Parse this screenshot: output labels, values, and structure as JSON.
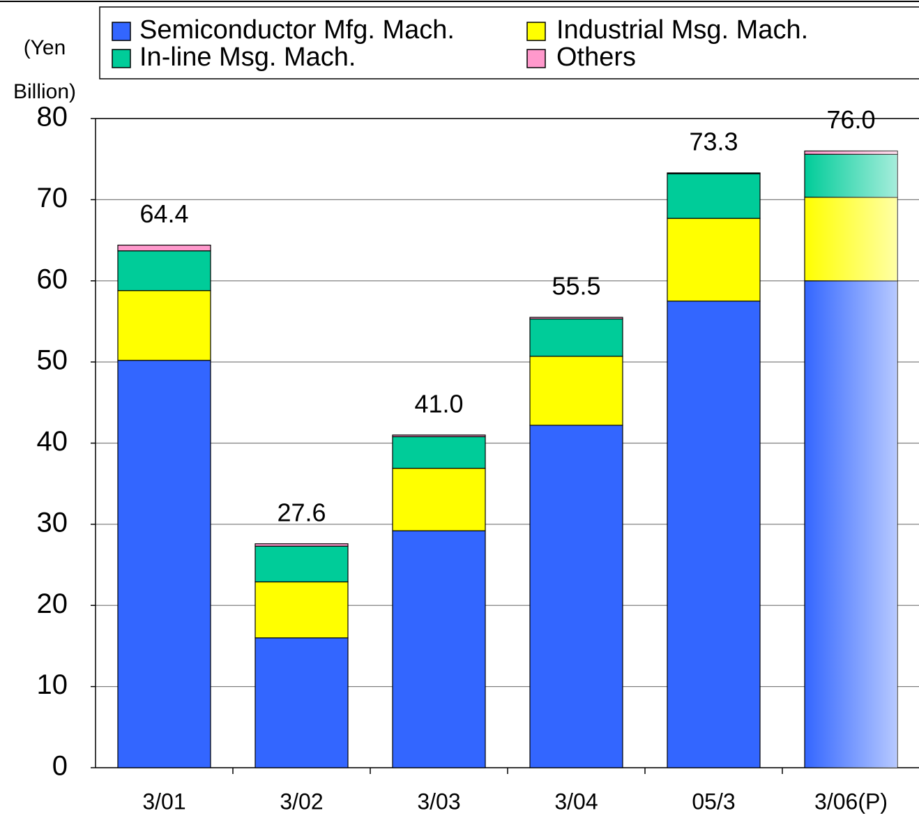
{
  "chart_data": {
    "type": "stacked_bar",
    "y_label_lines": [
      "(Yen",
      "Billion)"
    ],
    "categories": [
      "3/01",
      "3/02",
      "3/03",
      "3/04",
      "05/3",
      "3/06(P)"
    ],
    "series": [
      {
        "name": "Semiconductor Mfg. Mach.",
        "color": "#3366ff",
        "values": [
          50.2,
          16.0,
          29.2,
          42.2,
          57.5,
          60.0
        ]
      },
      {
        "name": "Industrial Msg. Mach.",
        "color": "#ffff00",
        "values": [
          8.6,
          6.9,
          7.7,
          8.5,
          10.2,
          10.3
        ]
      },
      {
        "name": "In-line Msg. Mach.",
        "color": "#00cc99",
        "values": [
          4.9,
          4.4,
          3.9,
          4.6,
          5.5,
          5.3
        ]
      },
      {
        "name": "Others",
        "color": "#ff99cc",
        "values": [
          0.7,
          0.3,
          0.2,
          0.2,
          0.1,
          0.4
        ]
      }
    ],
    "totals": [
      64.4,
      27.6,
      41.0,
      55.5,
      73.3,
      76.0
    ],
    "total_labels": [
      "64.4",
      "27.6",
      "41.0",
      "55.5",
      "73.3",
      "76.0"
    ],
    "ylim": [
      0,
      80
    ],
    "yticks": [
      0,
      10,
      20,
      30,
      40,
      50,
      60,
      70,
      80
    ],
    "grid": true
  }
}
